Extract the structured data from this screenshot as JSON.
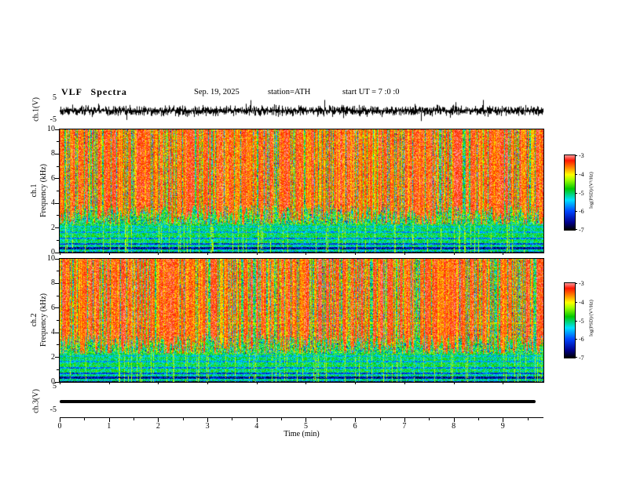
{
  "title": {
    "main": "VLF Spectra",
    "date": "Sep. 19, 2025",
    "station": "station=ATH",
    "start_ut": "start UT = 7 :0 :0"
  },
  "panels": {
    "ch1_wave": {
      "ylabel": "ch.1(V)",
      "ytick_top": "5",
      "ytick_bottom": "-5"
    },
    "ch1_spec": {
      "label": "ch.1",
      "ylabel": "Frequency (kHz)",
      "y_ticks": [
        "10",
        "8",
        "6",
        "4",
        "2",
        "0"
      ]
    },
    "ch2_spec": {
      "label": "ch.2",
      "ylabel": "Frequency (kHz)",
      "y_ticks": [
        "10",
        "8",
        "6",
        "4",
        "2",
        "0"
      ]
    },
    "ch3_wave": {
      "ylabel": "ch.3(V)",
      "ytick_top": "5",
      "ytick_bottom": "-5"
    }
  },
  "xaxis": {
    "label": "Time (min)",
    "ticks": [
      "0",
      "1",
      "2",
      "3",
      "4",
      "5",
      "6",
      "7",
      "8",
      "9"
    ],
    "max_visible": 9.825
  },
  "colorbar": {
    "label": "log(PSD)/(V²/Hz)",
    "ticks": [
      "-3",
      "-4",
      "-5",
      "-6",
      "-7"
    ],
    "zlim": [
      -7,
      -3
    ]
  },
  "colormap": [
    [
      0.0,
      [
        0,
        0,
        0
      ]
    ],
    [
      0.1,
      [
        0,
        0,
        140
      ]
    ],
    [
      0.25,
      [
        0,
        70,
        255
      ]
    ],
    [
      0.4,
      [
        0,
        225,
        255
      ]
    ],
    [
      0.55,
      [
        0,
        200,
        0
      ]
    ],
    [
      0.67,
      [
        160,
        255,
        0
      ]
    ],
    [
      0.74,
      [
        255,
        255,
        0
      ]
    ],
    [
      0.83,
      [
        255,
        140,
        0
      ]
    ],
    [
      0.93,
      [
        255,
        20,
        0
      ]
    ],
    [
      1.0,
      [
        255,
        150,
        150
      ]
    ]
  ],
  "chart_data": [
    {
      "type": "line",
      "panel": "ch.1 voltage waveform",
      "ylabel": "ch.1(V)",
      "xlim": [
        0,
        9.825
      ],
      "ylim": [
        -5,
        5
      ],
      "description": "dense broadband noise trace centered on 0 V, typical amplitude ±2 V with spikes to about ±4 V over the full 0–9.8 min record"
    },
    {
      "type": "heatmap",
      "panel": "ch.1 spectrogram",
      "xlabel": "Time (min)",
      "ylabel": "Frequency (kHz)",
      "xlim": [
        0,
        9.825
      ],
      "ylim": [
        0,
        10
      ],
      "zlabel": "log(PSD)/(V²/Hz)",
      "zlim": [
        -7,
        -3
      ],
      "description": "dense vertical sferic streaks (red/orange, PSD ~ -3.5 to -4) from 10 kHz down to ~2.5 kHz over a green/yellow speckle background (~ -5); horizontal green banded structure 0.3–2.5 kHz with darker rows; near-black band below ~0.3 kHz; occasional strong streaks reach to 0 kHz"
    },
    {
      "type": "heatmap",
      "panel": "ch.2 spectrogram",
      "xlabel": "Time (min)",
      "ylabel": "Frequency (kHz)",
      "xlim": [
        0,
        9.825
      ],
      "ylim": [
        0,
        10
      ],
      "zlabel": "log(PSD)/(V²/Hz)",
      "zlim": [
        -7,
        -3
      ],
      "description": "same sferic streak structure as ch.1 with a thin enhanced (yellow) horizontal line near 4.8 kHz"
    },
    {
      "type": "line",
      "panel": "ch.3 voltage waveform",
      "ylabel": "ch.3(V)",
      "xlim": [
        0,
        9.825
      ],
      "ylim": [
        -5,
        5
      ],
      "constant_value": 0,
      "description": "flat thick line at 0 V from 0 to ~9.7 min (channel inactive)"
    }
  ]
}
